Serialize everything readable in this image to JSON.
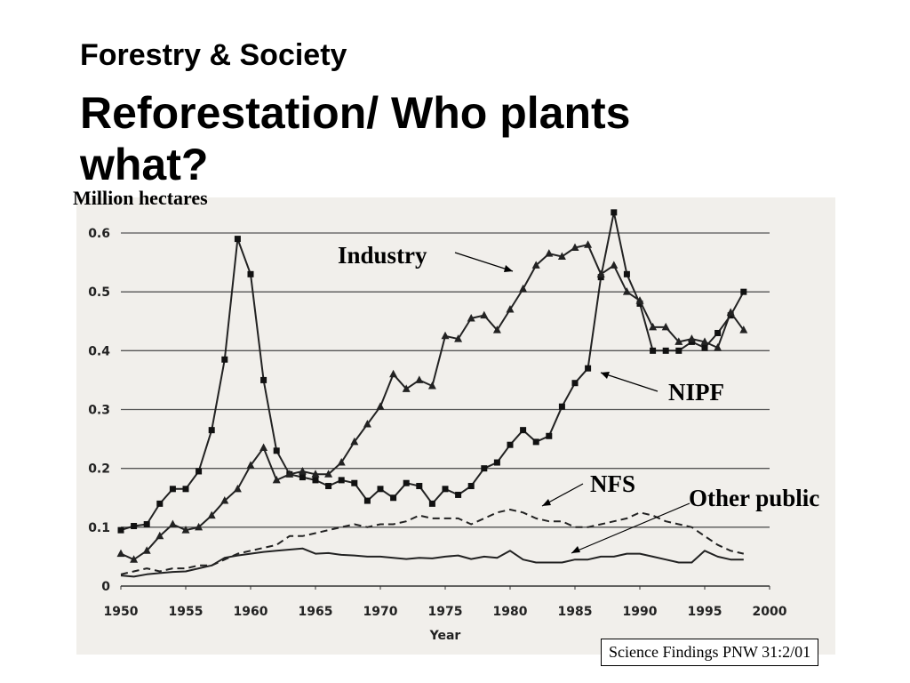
{
  "slide": {
    "subtitle": "Forestry & Society",
    "title": "Reforestation/ Who plants what?",
    "source": "Science Findings PNW 31:2/01"
  },
  "chart_data": {
    "type": "line",
    "title": "",
    "xlabel": "Year",
    "ylabel": "Million hectares",
    "xlim": [
      1950,
      2000
    ],
    "ylim": [
      0,
      0.6
    ],
    "xticks": [
      1950,
      1955,
      1960,
      1965,
      1970,
      1975,
      1980,
      1985,
      1990,
      1995,
      2000
    ],
    "yticks": [
      0,
      0.1,
      0.2,
      0.3,
      0.4,
      0.5,
      0.6
    ],
    "ytick_labels": [
      "0",
      "0.1",
      "0.2",
      "0.3",
      "0.4",
      "0.5",
      "0.6"
    ],
    "grid": "horizontal",
    "x": [
      1950,
      1951,
      1952,
      1953,
      1954,
      1955,
      1956,
      1957,
      1958,
      1959,
      1960,
      1961,
      1962,
      1963,
      1964,
      1965,
      1966,
      1967,
      1968,
      1969,
      1970,
      1971,
      1972,
      1973,
      1974,
      1975,
      1976,
      1977,
      1978,
      1979,
      1980,
      1981,
      1982,
      1983,
      1984,
      1985,
      1986,
      1987,
      1988,
      1989,
      1990,
      1991,
      1992,
      1993,
      1994,
      1995,
      1996,
      1997,
      1998
    ],
    "series": [
      {
        "name": "NIPF",
        "style": "solid",
        "marker": "square",
        "values": [
          0.095,
          0.102,
          0.105,
          0.14,
          0.165,
          0.165,
          0.195,
          0.265,
          0.385,
          0.59,
          0.53,
          0.35,
          0.23,
          0.19,
          0.185,
          0.18,
          0.17,
          0.18,
          0.175,
          0.145,
          0.165,
          0.15,
          0.175,
          0.17,
          0.14,
          0.165,
          0.155,
          0.17,
          0.2,
          0.21,
          0.24,
          0.265,
          0.245,
          0.255,
          0.305,
          0.345,
          0.37,
          0.525,
          0.635,
          0.53,
          0.48,
          0.4,
          0.4,
          0.4,
          0.415,
          0.405,
          0.43,
          0.46,
          0.5
        ]
      },
      {
        "name": "Industry",
        "style": "solid",
        "marker": "triangle",
        "values": [
          0.055,
          0.045,
          0.06,
          0.085,
          0.105,
          0.095,
          0.1,
          0.12,
          0.145,
          0.165,
          0.205,
          0.235,
          0.18,
          0.19,
          0.195,
          0.19,
          0.19,
          0.21,
          0.245,
          0.275,
          0.305,
          0.36,
          0.335,
          0.35,
          0.34,
          0.425,
          0.42,
          0.455,
          0.46,
          0.435,
          0.47,
          0.505,
          0.545,
          0.565,
          0.56,
          0.575,
          0.58,
          0.53,
          0.545,
          0.5,
          0.485,
          0.44,
          0.44,
          0.415,
          0.42,
          0.415,
          0.405,
          0.465,
          0.435
        ]
      },
      {
        "name": "NFS",
        "style": "dashed",
        "marker": "none",
        "values": [
          0.02,
          0.025,
          0.03,
          0.025,
          0.03,
          0.03,
          0.035,
          0.035,
          0.045,
          0.055,
          0.06,
          0.065,
          0.07,
          0.085,
          0.085,
          0.09,
          0.095,
          0.1,
          0.105,
          0.1,
          0.105,
          0.105,
          0.11,
          0.12,
          0.115,
          0.115,
          0.115,
          0.105,
          0.115,
          0.125,
          0.13,
          0.125,
          0.115,
          0.11,
          0.11,
          0.1,
          0.1,
          0.105,
          0.11,
          0.115,
          0.125,
          0.12,
          0.11,
          0.105,
          0.1,
          0.085,
          0.07,
          0.06,
          0.055
        ]
      },
      {
        "name": "Other public",
        "style": "solid",
        "marker": "none",
        "values": [
          0.018,
          0.016,
          0.02,
          0.022,
          0.024,
          0.025,
          0.03,
          0.035,
          0.048,
          0.052,
          0.055,
          0.058,
          0.06,
          0.062,
          0.064,
          0.055,
          0.056,
          0.053,
          0.052,
          0.05,
          0.05,
          0.048,
          0.046,
          0.048,
          0.047,
          0.05,
          0.052,
          0.046,
          0.05,
          0.048,
          0.06,
          0.045,
          0.04,
          0.04,
          0.04,
          0.045,
          0.045,
          0.05,
          0.05,
          0.055,
          0.055,
          0.05,
          0.045,
          0.04,
          0.04,
          0.06,
          0.05,
          0.045,
          0.045
        ]
      }
    ],
    "annotations": [
      "Industry",
      "NIPF",
      "NFS",
      "Other public"
    ]
  }
}
